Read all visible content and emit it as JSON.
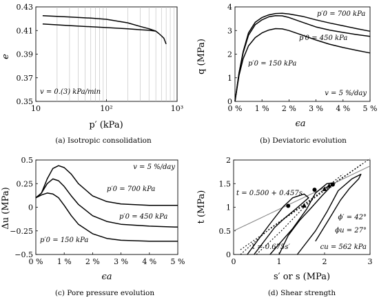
{
  "chart_data": [
    {
      "type": "line",
      "caption": "(a) Isotropic consolidation",
      "xlabel": "p′ (kPa)",
      "ylabel": "e",
      "xscale": "log",
      "xlim": [
        10,
        1000
      ],
      "ylim": [
        0.35,
        0.43
      ],
      "xticks": [
        10,
        100,
        1000
      ],
      "xtick_labels": [
        "10",
        "10²",
        "10³"
      ],
      "yticks": [
        0.35,
        0.37,
        0.39,
        0.41,
        0.43
      ],
      "ytick_labels": [
        "0.35",
        "0.37",
        "0.39",
        "0.41",
        "0.43"
      ],
      "grid": "vertical",
      "annotations": [
        "v = 0.(3) kPa/min"
      ],
      "series": [
        {
          "x": [
            12.5,
            30,
            60,
            100,
            200,
            300,
            400,
            500
          ],
          "y": [
            0.4225,
            0.4215,
            0.4205,
            0.4195,
            0.4165,
            0.4135,
            0.4115,
            0.4095
          ]
        },
        {
          "x": [
            12.5,
            30,
            60,
            100,
            200,
            300,
            400,
            500
          ],
          "y": [
            0.4155,
            0.4142,
            0.4132,
            0.4125,
            0.4115,
            0.4107,
            0.4102,
            0.4095
          ]
        },
        {
          "x": [
            500,
            550,
            600,
            650,
            700
          ],
          "y": [
            0.4095,
            0.4075,
            0.4055,
            0.4035,
            0.3985
          ]
        }
      ]
    },
    {
      "type": "line",
      "caption": "(b) Deviatoric evolution",
      "xlabel": "ϵa",
      "ylabel": "q (MPa)",
      "xlim": [
        0,
        5
      ],
      "ylim": [
        0,
        4
      ],
      "xticks": [
        0,
        1,
        2,
        3,
        4,
        5
      ],
      "xtick_labels": [
        "0 %",
        "1 %",
        "2 %",
        "3 %",
        "4 %",
        "5 %"
      ],
      "yticks": [
        0,
        1,
        2,
        3,
        4
      ],
      "ytick_labels": [
        "0",
        "1",
        "2",
        "3",
        "4"
      ],
      "annotations": [
        "v = 5 %/day"
      ],
      "series": [
        {
          "name": "p′0 = 700 kPa",
          "x": [
            0,
            0.15,
            0.3,
            0.5,
            0.75,
            1.0,
            1.25,
            1.5,
            1.75,
            2.0,
            2.5,
            3.0,
            3.5,
            4.0,
            4.5,
            5.0
          ],
          "y": [
            0,
            1.2,
            2.1,
            2.9,
            3.35,
            3.55,
            3.66,
            3.72,
            3.73,
            3.7,
            3.6,
            3.45,
            3.32,
            3.2,
            3.08,
            2.97
          ]
        },
        {
          "name": "p′0 = 450 kPa",
          "x": [
            0,
            0.15,
            0.3,
            0.5,
            0.75,
            1.0,
            1.25,
            1.5,
            1.75,
            2.0,
            2.5,
            3.0,
            3.5,
            4.0,
            4.5,
            5.0
          ],
          "y": [
            0,
            1.2,
            2.05,
            2.8,
            3.25,
            3.45,
            3.58,
            3.63,
            3.62,
            3.55,
            3.35,
            3.15,
            3.02,
            2.92,
            2.83,
            2.75
          ]
        },
        {
          "name": "p′0 = 150 kPa",
          "x": [
            0,
            0.15,
            0.3,
            0.5,
            0.75,
            1.0,
            1.25,
            1.5,
            1.75,
            2.0,
            2.5,
            3.0,
            3.5,
            4.0,
            4.5,
            5.0
          ],
          "y": [
            0,
            1.1,
            1.8,
            2.35,
            2.7,
            2.9,
            3.02,
            3.08,
            3.07,
            3.0,
            2.8,
            2.6,
            2.42,
            2.28,
            2.16,
            2.05
          ]
        }
      ]
    },
    {
      "type": "line",
      "caption": "(c) Pore pressure evolution",
      "xlabel": "ϵa",
      "ylabel": "Δu (MPa)",
      "xlim": [
        0,
        5
      ],
      "ylim": [
        -0.5,
        0.5
      ],
      "xticks": [
        0,
        1,
        2,
        3,
        4,
        5
      ],
      "xtick_labels": [
        "0 %",
        "1 %",
        "2 %",
        "3 %",
        "4 %",
        "5 %"
      ],
      "yticks": [
        -0.5,
        -0.25,
        0,
        0.25,
        0.5
      ],
      "ytick_labels": [
        "−0.5",
        "−0.25",
        "0",
        "0.25",
        "0.5"
      ],
      "annotations": [
        "v = 5 %/day"
      ],
      "series": [
        {
          "name": "p′0 = 700 kPa",
          "x": [
            0,
            0.2,
            0.4,
            0.6,
            0.8,
            1.0,
            1.25,
            1.5,
            2.0,
            2.5,
            3.0,
            4.0,
            5.0
          ],
          "y": [
            0.1,
            0.15,
            0.3,
            0.41,
            0.44,
            0.42,
            0.35,
            0.25,
            0.12,
            0.06,
            0.035,
            0.02,
            0.02
          ]
        },
        {
          "name": "p′0 = 450 kPa",
          "x": [
            0,
            0.2,
            0.4,
            0.6,
            0.8,
            1.0,
            1.25,
            1.5,
            2.0,
            2.5,
            3.0,
            4.0,
            5.0
          ],
          "y": [
            0.1,
            0.15,
            0.25,
            0.3,
            0.28,
            0.22,
            0.12,
            0.03,
            -0.09,
            -0.15,
            -0.18,
            -0.2,
            -0.21
          ]
        },
        {
          "name": "p′0 = 150 kPa",
          "x": [
            0,
            0.2,
            0.4,
            0.6,
            0.8,
            1.0,
            1.25,
            1.5,
            2.0,
            2.5,
            3.0,
            4.0,
            5.0
          ],
          "y": [
            0.1,
            0.13,
            0.15,
            0.14,
            0.1,
            0.02,
            -0.09,
            -0.18,
            -0.28,
            -0.33,
            -0.35,
            -0.36,
            -0.36
          ]
        }
      ]
    },
    {
      "type": "line",
      "caption": "(d) Shear strength",
      "xlabel": "s′ or s (MPa)",
      "ylabel": "t (MPa)",
      "xlim": [
        0,
        3
      ],
      "ylim": [
        0,
        2
      ],
      "xticks": [
        0,
        1,
        2,
        3
      ],
      "xtick_labels": [
        "0",
        "1",
        "2",
        "3"
      ],
      "yticks": [
        0,
        0.5,
        1,
        1.5,
        2
      ],
      "ytick_labels": [
        "0",
        "0.5",
        "1",
        "1.5",
        "2"
      ],
      "annotations": [
        "t = 0.500 + 0.457s",
        "t = 0.675s′",
        "ϕ′ = 42°",
        "ϕu = 27°",
        "cu = 562 kPa"
      ],
      "series": [
        {
          "x": [
            0.15,
            0.8,
            1.6,
            2.0,
            2.5,
            2.8
          ],
          "y": [
            0,
            0.55,
            1.1,
            1.38,
            1.7,
            1.9
          ]
        },
        {
          "x": [
            0.5,
            1.05,
            1.55,
            1.95,
            2.4
          ],
          "y": [
            0,
            0.5,
            1.0,
            1.35,
            1.7
          ]
        },
        {
          "x": [
            0.15,
            0.6,
            1.0,
            1.5,
            2.0,
            2.5,
            3.0
          ],
          "y": [
            0.1,
            0.4,
            0.68,
            1.01,
            1.35,
            1.69,
            2.03
          ]
        },
        {
          "x": [
            0,
            1,
            2,
            3
          ],
          "y": [
            0.5,
            0.957,
            1.414,
            1.871
          ]
        },
        {
          "x": [
            0.3,
            0.8,
            1.1,
            1.3,
            1.55,
            1.65,
            1.35,
            1.1,
            0.9,
            0.45
          ],
          "y": [
            0,
            0.65,
            1.02,
            1.2,
            1.28,
            1.2,
            0.95,
            0.75,
            0.57,
            0
          ]
        },
        {
          "x": [
            0.8,
            1.3,
            1.6,
            1.8,
            2.05,
            2.2,
            2.1,
            1.95,
            1.7,
            1.45,
            1.2,
            1.0
          ],
          "y": [
            0,
            0.55,
            0.95,
            1.3,
            1.5,
            1.52,
            1.4,
            1.25,
            0.98,
            0.72,
            0.4,
            0
          ]
        },
        {
          "x": [
            1.4,
            1.8,
            2.05,
            2.3,
            2.6,
            2.8,
            2.75,
            2.55,
            2.35,
            2.1,
            1.8
          ],
          "y": [
            0,
            0.5,
            0.9,
            1.35,
            1.6,
            1.7,
            1.6,
            1.4,
            1.15,
            0.75,
            0.28
          ]
        }
      ],
      "markers": {
        "circles": {
          "x": [
            1.2,
            1.78,
            2.18
          ],
          "y": [
            1.03,
            1.37,
            1.48
          ]
        },
        "triangles": {
          "x": [
            1.55,
            2.0,
            2.1
          ],
          "y": [
            1.03,
            1.38,
            1.45
          ]
        }
      }
    }
  ]
}
